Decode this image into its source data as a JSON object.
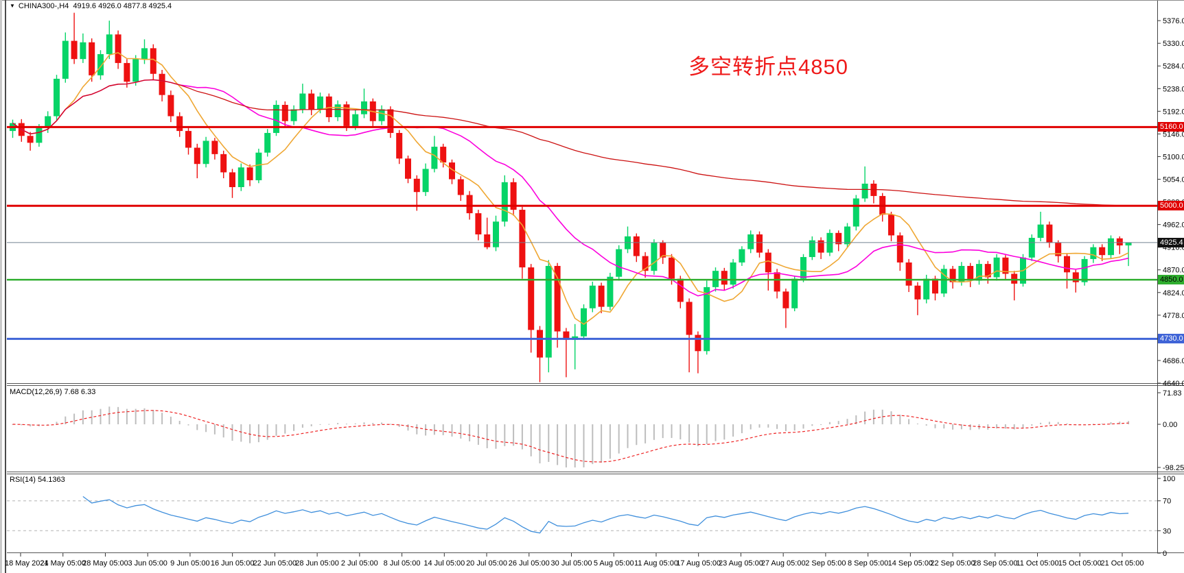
{
  "header": {
    "symbol": "CHINA300-,H4",
    "ohlc": "4919.6 4926.0 4877.8 4925.4"
  },
  "annotation": {
    "text": "多空转折点4850",
    "color": "#ef1a1a"
  },
  "panels": {
    "macd": {
      "label": "MACD(12,26,9) 7.68 6.33",
      "axis_labels": [
        "71.83",
        "0.00",
        "-98.25"
      ],
      "axis_values": [
        71.83,
        0.0,
        -98.25
      ]
    },
    "rsi": {
      "label": "RSI(14) 54.1363",
      "axis_labels": [
        "100",
        "70",
        "30",
        "0"
      ],
      "axis_values": [
        100,
        70,
        30,
        0
      ],
      "level_lines": [
        70,
        30
      ]
    }
  },
  "price_axis": {
    "tick_values": [
      5376,
      5330,
      5284,
      5238,
      5192,
      5146,
      5100,
      5054,
      5008,
      4962,
      4916,
      4870,
      4824,
      4778,
      4732,
      4686,
      4640
    ]
  },
  "time_axis": {
    "labels": [
      "18 May 2021",
      "24 May 05:00",
      "28 May 05:00",
      "3 Jun 05:00",
      "9 Jun 05:00",
      "16 Jun 05:00",
      "22 Jun 05:00",
      "28 Jun 05:00",
      "2 Jul 05:00",
      "8 Jul 05:00",
      "14 Jul 05:00",
      "20 Jul 05:00",
      "26 Jul 05:00",
      "30 Jul 05:00",
      "5 Aug 05:00",
      "11 Aug 05:00",
      "17 Aug 05:00",
      "23 Aug 05:00",
      "27 Aug 05:00",
      "2 Sep 05:00",
      "8 Sep 05:00",
      "14 Sep 05:00",
      "22 Sep 05:00",
      "28 Sep 05:00",
      "11 Oct 05:00",
      "15 Oct 05:00",
      "21 Oct 05:00"
    ]
  },
  "chart_data": {
    "type": "candlestick",
    "symbol": "CHINA300-",
    "timeframe": "H4",
    "title": "CHINA300-,H4 4919.6 4926.0 4877.8 4925.4",
    "price_range_top": 5404,
    "price_range_bottom": 4640,
    "colors": {
      "up_candle": "#06d467",
      "down_candle": "#ee1111",
      "ma_fast": "#efa733",
      "ma_mid": "#fb00dd",
      "ma_slow": "#cc1111",
      "hline_red": "#e00000",
      "hline_green": "#2fae2f",
      "hline_blue": "#3f64d7",
      "current_line": "#708090",
      "macd_hist": "#bdbdbd",
      "macd_signal": "#ee2222",
      "rsi_line": "#3f8fdc",
      "level_dash": "#b4b4b4"
    },
    "hlines": [
      {
        "price": 5160.0,
        "label": "5160.0",
        "color": "#e00000",
        "badge_bg": "#e00000",
        "badge_fg": "#ffffff",
        "width": 3
      },
      {
        "price": 5000.0,
        "label": "5000.0",
        "color": "#e00000",
        "badge_bg": "#e00000",
        "badge_fg": "#ffffff",
        "width": 3
      },
      {
        "price": 4850.0,
        "label": "4850.0",
        "color": "#2fae2f",
        "badge_bg": "#2fae2f",
        "badge_fg": "#000000",
        "width": 2.5
      },
      {
        "price": 4730.0,
        "label": "4730.0",
        "color": "#3f64d7",
        "badge_bg": "#3f64d7",
        "badge_fg": "#ffffff",
        "width": 3
      }
    ],
    "current_price": {
      "price": 4925.4,
      "label": "4925.4",
      "line_color": "#708090",
      "badge_bg": "#111111",
      "badge_fg": "#ffffff"
    },
    "overlays": [
      {
        "name": "ma-fast",
        "window": 7,
        "color": "#efa733"
      },
      {
        "name": "ma-mid",
        "window": 20,
        "color": "#fb00dd"
      },
      {
        "name": "ma-slow",
        "window": 999,
        "color": "#cc1111"
      }
    ],
    "indicators": {
      "macd": {
        "fast": 12,
        "slow": 26,
        "signal": 9,
        "value": 7.68,
        "signal_value": 6.33
      },
      "rsi": {
        "period": 14,
        "value": 54.1363
      }
    },
    "candles": [
      [
        5152,
        5175,
        5138,
        5168
      ],
      [
        5168,
        5176,
        5130,
        5142
      ],
      [
        5142,
        5150,
        5112,
        5128
      ],
      [
        5128,
        5166,
        5120,
        5158
      ],
      [
        5158,
        5192,
        5148,
        5182
      ],
      [
        5182,
        5266,
        5174,
        5258
      ],
      [
        5258,
        5352,
        5250,
        5335
      ],
      [
        5335,
        5392,
        5288,
        5298
      ],
      [
        5298,
        5350,
        5290,
        5332
      ],
      [
        5332,
        5340,
        5252,
        5265
      ],
      [
        5265,
        5316,
        5256,
        5308
      ],
      [
        5308,
        5376,
        5298,
        5348
      ],
      [
        5348,
        5356,
        5278,
        5290
      ],
      [
        5290,
        5298,
        5240,
        5252
      ],
      [
        5252,
        5306,
        5244,
        5298
      ],
      [
        5298,
        5338,
        5288,
        5320
      ],
      [
        5320,
        5328,
        5256,
        5268
      ],
      [
        5268,
        5276,
        5212,
        5225
      ],
      [
        5225,
        5234,
        5170,
        5182
      ],
      [
        5182,
        5190,
        5140,
        5152
      ],
      [
        5152,
        5158,
        5104,
        5118
      ],
      [
        5118,
        5126,
        5056,
        5085
      ],
      [
        5085,
        5140,
        5078,
        5132
      ],
      [
        5132,
        5138,
        5094,
        5105
      ],
      [
        5105,
        5112,
        5056,
        5068
      ],
      [
        5068,
        5075,
        5016,
        5038
      ],
      [
        5038,
        5086,
        5030,
        5078
      ],
      [
        5078,
        5084,
        5040,
        5052
      ],
      [
        5052,
        5116,
        5046,
        5108
      ],
      [
        5108,
        5156,
        5100,
        5148
      ],
      [
        5148,
        5214,
        5142,
        5205
      ],
      [
        5205,
        5212,
        5160,
        5172
      ],
      [
        5172,
        5204,
        5164,
        5196
      ],
      [
        5196,
        5248,
        5188,
        5228
      ],
      [
        5228,
        5236,
        5184,
        5195
      ],
      [
        5195,
        5230,
        5188,
        5222
      ],
      [
        5222,
        5228,
        5170,
        5180
      ],
      [
        5180,
        5214,
        5172,
        5206
      ],
      [
        5206,
        5212,
        5152,
        5162
      ],
      [
        5162,
        5194,
        5154,
        5186
      ],
      [
        5186,
        5238,
        5178,
        5212
      ],
      [
        5212,
        5218,
        5162,
        5172
      ],
      [
        5172,
        5204,
        5164,
        5196
      ],
      [
        5196,
        5202,
        5138,
        5148
      ],
      [
        5148,
        5154,
        5085,
        5096
      ],
      [
        5096,
        5102,
        5046,
        5055
      ],
      [
        5055,
        5062,
        4990,
        5028
      ],
      [
        5028,
        5086,
        5020,
        5075
      ],
      [
        5075,
        5142,
        5068,
        5120
      ],
      [
        5120,
        5126,
        5078,
        5088
      ],
      [
        5088,
        5094,
        5044,
        5054
      ],
      [
        5054,
        5060,
        5010,
        5022
      ],
      [
        5022,
        5030,
        4972,
        4985
      ],
      [
        4985,
        4992,
        4930,
        4942
      ],
      [
        4942,
        4976,
        4912,
        4916
      ],
      [
        4916,
        4980,
        4908,
        4968
      ],
      [
        4968,
        5062,
        4958,
        5048
      ],
      [
        5048,
        5056,
        4980,
        4992
      ],
      [
        4992,
        4998,
        4852,
        4875
      ],
      [
        4875,
        4882,
        4702,
        4748
      ],
      [
        4748,
        4756,
        4642,
        4692
      ],
      [
        4692,
        4890,
        4662,
        4878
      ],
      [
        4878,
        4884,
        4712,
        4745
      ],
      [
        4745,
        4752,
        4652,
        4728
      ],
      [
        4728,
        4760,
        4668,
        4735
      ],
      [
        4735,
        4800,
        4728,
        4792
      ],
      [
        4792,
        4846,
        4784,
        4838
      ],
      [
        4838,
        4844,
        4782,
        4795
      ],
      [
        4795,
        4864,
        4788,
        4856
      ],
      [
        4856,
        4920,
        4848,
        4912
      ],
      [
        4912,
        4958,
        4904,
        4938
      ],
      [
        4938,
        4944,
        4886,
        4898
      ],
      [
        4898,
        4906,
        4854,
        4868
      ],
      [
        4868,
        4932,
        4860,
        4925
      ],
      [
        4925,
        4930,
        4882,
        4895
      ],
      [
        4895,
        4902,
        4840,
        4852
      ],
      [
        4852,
        4858,
        4792,
        4805
      ],
      [
        4805,
        4812,
        4662,
        4738
      ],
      [
        4738,
        4745,
        4660,
        4705
      ],
      [
        4705,
        4848,
        4698,
        4835
      ],
      [
        4835,
        4875,
        4826,
        4868
      ],
      [
        4868,
        4874,
        4828,
        4840
      ],
      [
        4840,
        4892,
        4832,
        4885
      ],
      [
        4885,
        4918,
        4878,
        4912
      ],
      [
        4912,
        4950,
        4904,
        4942
      ],
      [
        4942,
        4948,
        4895,
        4905
      ],
      [
        4905,
        4912,
        4828,
        4865
      ],
      [
        4865,
        4872,
        4812,
        4826
      ],
      [
        4826,
        4832,
        4752,
        4792
      ],
      [
        4792,
        4858,
        4786,
        4852
      ],
      [
        4852,
        4902,
        4845,
        4896
      ],
      [
        4896,
        4938,
        4890,
        4930
      ],
      [
        4930,
        4936,
        4892,
        4905
      ],
      [
        4905,
        4952,
        4898,
        4945
      ],
      [
        4945,
        4950,
        4908,
        4922
      ],
      [
        4922,
        4965,
        4915,
        4958
      ],
      [
        4958,
        5022,
        4950,
        5015
      ],
      [
        5015,
        5080,
        5008,
        5045
      ],
      [
        5045,
        5052,
        5005,
        5020
      ],
      [
        5020,
        5026,
        4968,
        4982
      ],
      [
        4982,
        4988,
        4928,
        4940
      ],
      [
        4940,
        4946,
        4868,
        4885
      ],
      [
        4885,
        4892,
        4825,
        4838
      ],
      [
        4838,
        4845,
        4778,
        4810
      ],
      [
        4810,
        4860,
        4802,
        4852
      ],
      [
        4852,
        4858,
        4808,
        4822
      ],
      [
        4822,
        4880,
        4815,
        4872
      ],
      [
        4872,
        4878,
        4832,
        4845
      ],
      [
        4845,
        4886,
        4838,
        4878
      ],
      [
        4878,
        4884,
        4835,
        4848
      ],
      [
        4848,
        4890,
        4840,
        4882
      ],
      [
        4882,
        4888,
        4842,
        4855
      ],
      [
        4855,
        4902,
        4848,
        4895
      ],
      [
        4895,
        4900,
        4850,
        4862
      ],
      [
        4862,
        4868,
        4808,
        4842
      ],
      [
        4842,
        4902,
        4836,
        4895
      ],
      [
        4895,
        4942,
        4888,
        4935
      ],
      [
        4935,
        4988,
        4928,
        4962
      ],
      [
        4962,
        4968,
        4915,
        4925
      ],
      [
        4925,
        4930,
        4885,
        4898
      ],
      [
        4898,
        4904,
        4832,
        4865
      ],
      [
        4865,
        4870,
        4824,
        4845
      ],
      [
        4845,
        4898,
        4838,
        4892
      ],
      [
        4892,
        4922,
        4884,
        4916
      ],
      [
        4916,
        4922,
        4888,
        4900
      ],
      [
        4900,
        4940,
        4892,
        4934
      ],
      [
        4934,
        4938,
        4902,
        4919.6
      ],
      [
        4919.6,
        4926.0,
        4877.8,
        4925.4
      ]
    ]
  }
}
